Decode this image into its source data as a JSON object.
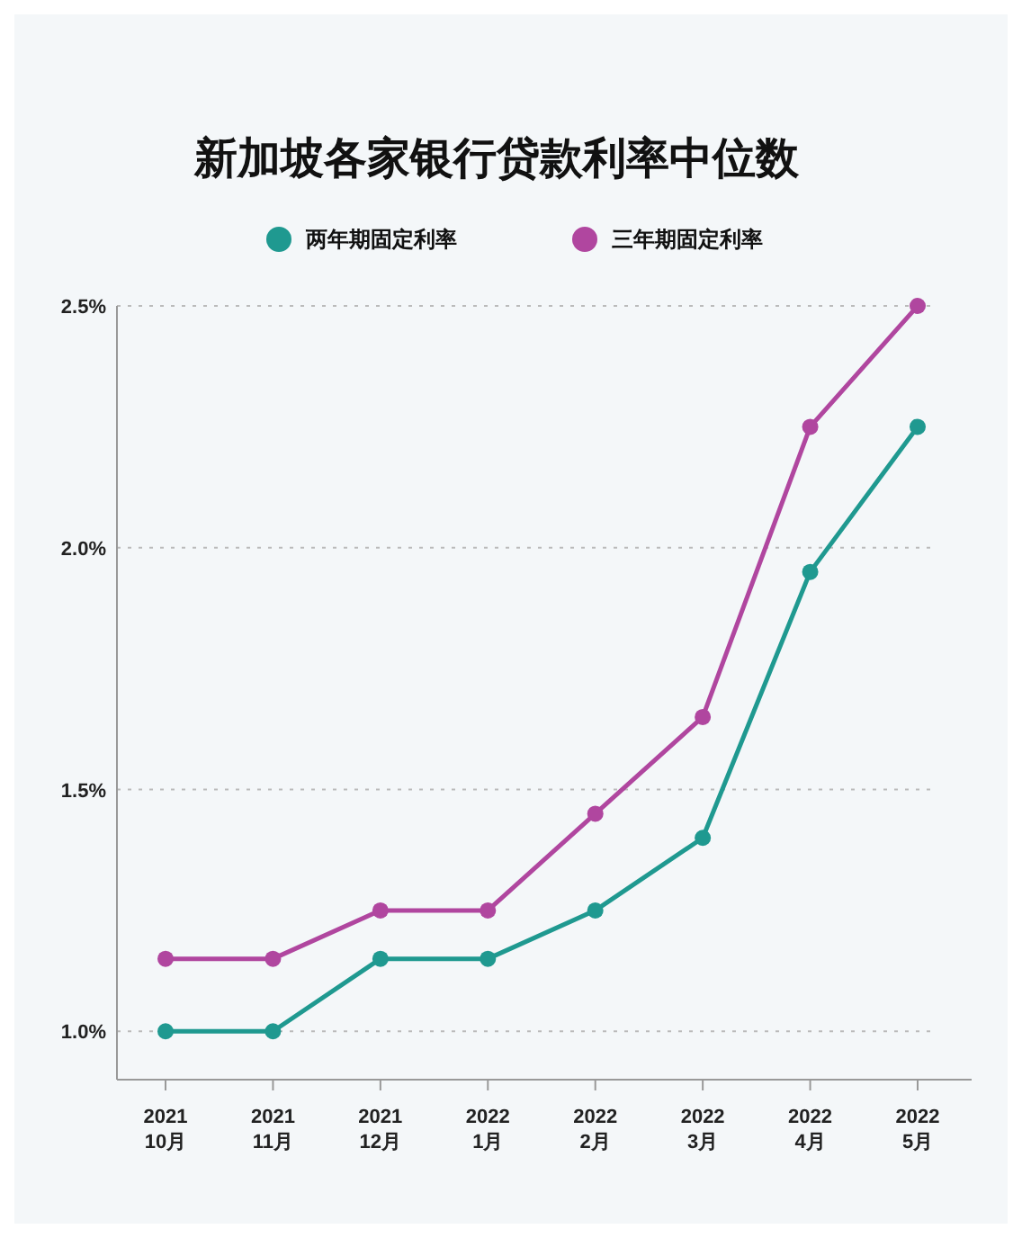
{
  "chart_data": {
    "type": "line",
    "title": "新加坡各家银行贷款利率中位数",
    "categories": [
      "2021\n10月",
      "2021\n11月",
      "2021\n12月",
      "2022\n1月",
      "2022\n2月",
      "2022\n3月",
      "2022\n4月",
      "2022\n5月"
    ],
    "series": [
      {
        "name": "两年期固定利率",
        "color": "#1f9990",
        "values": [
          1.0,
          1.0,
          1.15,
          1.15,
          1.25,
          1.4,
          1.95,
          2.25
        ]
      },
      {
        "name": "三年期固定利率",
        "color": "#b0469f",
        "values": [
          1.15,
          1.15,
          1.25,
          1.25,
          1.45,
          1.65,
          2.25,
          2.5
        ]
      }
    ],
    "ylim": [
      0.9,
      2.5
    ],
    "yticks": [
      {
        "value": 1.0,
        "label": "1.0%"
      },
      {
        "value": 1.5,
        "label": "1.5%"
      },
      {
        "value": 2.0,
        "label": "2.0%"
      },
      {
        "value": 2.5,
        "label": "2.5%"
      }
    ],
    "grid": "y",
    "legend": "top",
    "marker": "circle",
    "line_style": "solid"
  }
}
